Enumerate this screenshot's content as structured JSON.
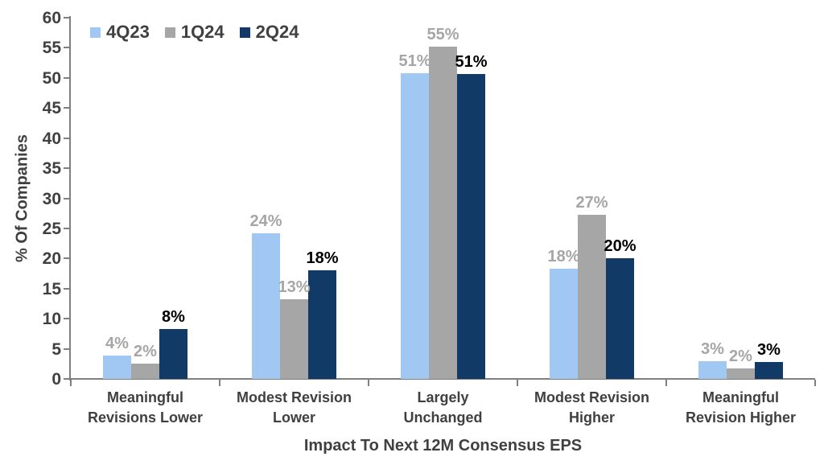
{
  "chart_data": {
    "type": "bar",
    "title": "",
    "xlabel": "Impact To Next 12M Consensus EPS",
    "ylabel": "% Of Companies",
    "ylim": [
      0,
      60
    ],
    "ytick_step": 5,
    "grid": false,
    "legend_position": "top-left",
    "categories": [
      "Meaningful\nRevisions Lower",
      "Modest Revision\nLower",
      "Largely\nUnchanged",
      "Modest Revision\nHigher",
      "Meaningful\nRevision Higher"
    ],
    "series": [
      {
        "name": "4Q23",
        "color": "#A0C8F2",
        "label_color": "#a6a6a6",
        "values": [
          3.9,
          24.2,
          50.8,
          18.3,
          2.9
        ],
        "labels": [
          "4%",
          "24%",
          "51%",
          "18%",
          "3%"
        ]
      },
      {
        "name": "1Q24",
        "color": "#a6a6a6",
        "label_color": "#a6a6a6",
        "values": [
          2.5,
          13.2,
          55.2,
          27.2,
          1.8
        ],
        "labels": [
          "2%",
          "13%",
          "55%",
          "27%",
          "2%"
        ]
      },
      {
        "name": "2Q24",
        "color": "#123A66",
        "label_color": "#000000",
        "values": [
          8.3,
          18.1,
          50.6,
          20.1,
          2.8
        ],
        "labels": [
          "8%",
          "18%",
          "51%",
          "20%",
          "3%"
        ]
      }
    ],
    "axis_color": "#7f7f7f",
    "text_color": "#404040"
  }
}
